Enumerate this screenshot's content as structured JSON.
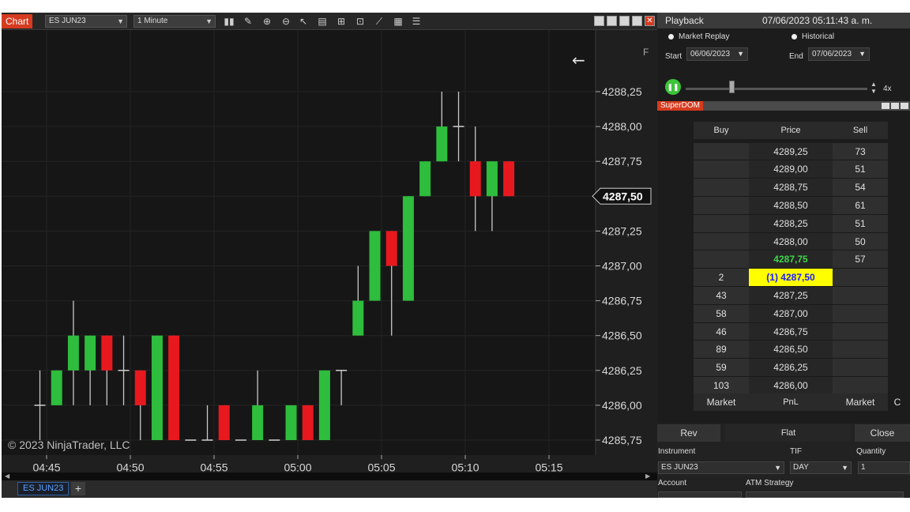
{
  "chart_window": {
    "tag": "Chart",
    "instrument": "ES JUN23",
    "interval": "1 Minute",
    "tab_label": "ES JUN23",
    "copyright": "© 2023 NinjaTrader, LLC",
    "close_glyph": "✕",
    "axis_letter": "F",
    "back_arrow": "←",
    "add_tab": "+"
  },
  "chart_data": {
    "type": "candlestick",
    "x_ticks": [
      "04:45",
      "04:50",
      "04:55",
      "05:00",
      "05:05",
      "05:10",
      "05:15"
    ],
    "x_tick_minutes": [
      0,
      5,
      10,
      15,
      20,
      25,
      30
    ],
    "y_ticks": [
      "4288,25",
      "4288,00",
      "4287,75",
      "4287,50",
      "4287,25",
      "4287,00",
      "4286,75",
      "4286,50",
      "4286,25",
      "4286,00",
      "4285,75"
    ],
    "y_tick_values": [
      4288.25,
      4288.0,
      4287.75,
      4287.5,
      4287.25,
      4287.0,
      4286.75,
      4286.5,
      4286.25,
      4286.0,
      4285.75
    ],
    "current_price": 4287.5,
    "current_price_label": "4287,50",
    "ylim": [
      4285.75,
      4288.25
    ],
    "up_color": "#2ebd3c",
    "down_color": "#e8191e",
    "candles": [
      {
        "m": -0.4,
        "o": 4286.0,
        "h": 4286.25,
        "l": 4285.75,
        "c": 4286.0
      },
      {
        "m": 0.6,
        "o": 4286.0,
        "h": 4286.25,
        "l": 4286.0,
        "c": 4286.25
      },
      {
        "m": 1.6,
        "o": 4286.25,
        "h": 4286.75,
        "l": 4286.0,
        "c": 4286.5
      },
      {
        "m": 2.6,
        "o": 4286.25,
        "h": 4286.5,
        "l": 4286.0,
        "c": 4286.5
      },
      {
        "m": 3.6,
        "o": 4286.5,
        "h": 4286.5,
        "l": 4286.0,
        "c": 4286.25
      },
      {
        "m": 4.6,
        "o": 4286.25,
        "h": 4286.5,
        "l": 4286.0,
        "c": 4286.25
      },
      {
        "m": 5.6,
        "o": 4286.25,
        "h": 4286.25,
        "l": 4285.75,
        "c": 4286.0
      },
      {
        "m": 6.6,
        "o": 4285.75,
        "h": 4286.5,
        "l": 4285.75,
        "c": 4286.5
      },
      {
        "m": 7.6,
        "o": 4286.5,
        "h": 4286.5,
        "l": 4285.75,
        "c": 4285.75
      },
      {
        "m": 8.6,
        "o": 4285.75,
        "h": 4285.75,
        "l": 4285.75,
        "c": 4285.75
      },
      {
        "m": 9.6,
        "o": 4285.75,
        "h": 4286.0,
        "l": 4285.75,
        "c": 4285.75
      },
      {
        "m": 10.6,
        "o": 4286.0,
        "h": 4286.0,
        "l": 4285.75,
        "c": 4285.75
      },
      {
        "m": 11.6,
        "o": 4285.75,
        "h": 4285.75,
        "l": 4285.75,
        "c": 4285.75
      },
      {
        "m": 12.6,
        "o": 4285.75,
        "h": 4286.25,
        "l": 4285.75,
        "c": 4286.0
      },
      {
        "m": 13.6,
        "o": 4285.75,
        "h": 4285.75,
        "l": 4285.75,
        "c": 4285.75
      },
      {
        "m": 14.6,
        "o": 4285.75,
        "h": 4286.0,
        "l": 4285.75,
        "c": 4286.0
      },
      {
        "m": 15.6,
        "o": 4286.0,
        "h": 4286.0,
        "l": 4285.75,
        "c": 4285.75
      },
      {
        "m": 16.6,
        "o": 4285.75,
        "h": 4286.25,
        "l": 4285.75,
        "c": 4286.25
      },
      {
        "m": 17.6,
        "o": 4286.25,
        "h": 4286.25,
        "l": 4286.0,
        "c": 4286.25
      },
      {
        "m": 18.6,
        "o": 4286.5,
        "h": 4287.0,
        "l": 4286.5,
        "c": 4286.75
      },
      {
        "m": 19.6,
        "o": 4286.75,
        "h": 4287.25,
        "l": 4286.75,
        "c": 4287.25
      },
      {
        "m": 20.6,
        "o": 4287.25,
        "h": 4287.25,
        "l": 4286.5,
        "c": 4287.0
      },
      {
        "m": 21.6,
        "o": 4286.75,
        "h": 4287.5,
        "l": 4286.75,
        "c": 4287.5
      },
      {
        "m": 22.6,
        "o": 4287.5,
        "h": 4287.75,
        "l": 4287.5,
        "c": 4287.75
      },
      {
        "m": 23.6,
        "o": 4287.75,
        "h": 4288.25,
        "l": 4287.75,
        "c": 4288.0
      },
      {
        "m": 24.6,
        "o": 4288.0,
        "h": 4288.25,
        "l": 4287.75,
        "c": 4288.0
      },
      {
        "m": 25.6,
        "o": 4287.75,
        "h": 4288.0,
        "l": 4287.25,
        "c": 4287.5
      },
      {
        "m": 26.6,
        "o": 4287.5,
        "h": 4287.75,
        "l": 4287.25,
        "c": 4287.75
      },
      {
        "m": 27.6,
        "o": 4287.75,
        "h": 4287.75,
        "l": 4287.5,
        "c": 4287.5
      }
    ]
  },
  "playback": {
    "title": "Playback",
    "datetime": "07/06/2023 05:11:43 a. m.",
    "mode_replay": "Market Replay",
    "mode_historical": "Historical",
    "start_label": "Start",
    "start_value": "06/06/2023",
    "end_label": "End",
    "end_value": "07/06/2023",
    "speed": "4x",
    "speed_fraction": 0.25
  },
  "superdom": {
    "tag": "SuperDOM",
    "headers": {
      "buy": "Buy",
      "price": "Price",
      "sell": "Sell"
    },
    "rows": [
      {
        "buy": "",
        "price": "4289,25",
        "sell": "73"
      },
      {
        "buy": "",
        "price": "4289,00",
        "sell": "51"
      },
      {
        "buy": "",
        "price": "4288,75",
        "sell": "54"
      },
      {
        "buy": "",
        "price": "4288,50",
        "sell": "61"
      },
      {
        "buy": "",
        "price": "4288,25",
        "sell": "51"
      },
      {
        "buy": "",
        "price": "4288,00",
        "sell": "50"
      },
      {
        "buy": "",
        "price": "4287,75",
        "sell": "57"
      },
      {
        "buy": "2",
        "price": "(1) 4287,50",
        "sell": ""
      },
      {
        "buy": "43",
        "price": "4287,25",
        "sell": ""
      },
      {
        "buy": "58",
        "price": "4287,00",
        "sell": ""
      },
      {
        "buy": "46",
        "price": "4286,75",
        "sell": ""
      },
      {
        "buy": "89",
        "price": "4286,50",
        "sell": ""
      },
      {
        "buy": "59",
        "price": "4286,25",
        "sell": ""
      },
      {
        "buy": "103",
        "price": "4286,00",
        "sell": ""
      }
    ],
    "footer": {
      "buy": "Market",
      "price": "PnL",
      "sell": "Market",
      "extra": "C"
    }
  },
  "order_entry": {
    "rev": "Rev",
    "flat": "Flat",
    "close": "Close",
    "instrument_label": "Instrument",
    "instrument_value": "ES JUN23",
    "tif_label": "TIF",
    "tif_value": "DAY",
    "quantity_label": "Quantity",
    "quantity_value": "1",
    "account_label": "Account",
    "atm_label": "ATM Strategy"
  }
}
